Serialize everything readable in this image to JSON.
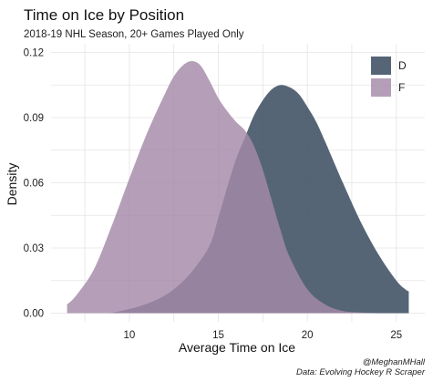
{
  "chart_data": {
    "type": "area",
    "title": "Time on Ice by Position",
    "subtitle": "2018-19 NHL Season, 20+ Games Played Only",
    "xlabel": "Average Time on Ice",
    "ylabel": "Density",
    "xlim": [
      5.6,
      26.6
    ],
    "ylim": [
      -0.004,
      0.124
    ],
    "xticks": [
      10,
      15,
      20,
      25
    ],
    "yticks": [
      0.0,
      0.03,
      0.06,
      0.09,
      0.12
    ],
    "ytick_labels": [
      "0.00",
      "0.03",
      "0.06",
      "0.09",
      "0.12"
    ],
    "grid": true,
    "legend_position": "top-right",
    "series": [
      {
        "name": "D",
        "color": "#3e5062",
        "x": [
          8.9,
          9.5,
          10.5,
          11.5,
          12.5,
          13.5,
          14.5,
          15.0,
          15.5,
          16.0,
          16.5,
          17.0,
          17.5,
          18.0,
          18.5,
          19.0,
          19.5,
          20.0,
          20.5,
          21.0,
          22.0,
          23.0,
          24.0,
          25.0,
          25.5,
          25.7
        ],
        "y": [
          0.0,
          0.001,
          0.003,
          0.006,
          0.011,
          0.019,
          0.031,
          0.044,
          0.058,
          0.071,
          0.081,
          0.091,
          0.098,
          0.103,
          0.105,
          0.104,
          0.101,
          0.095,
          0.088,
          0.079,
          0.06,
          0.042,
          0.027,
          0.015,
          0.011,
          0.01
        ]
      },
      {
        "name": "F",
        "color": "#a58aa8",
        "x": [
          6.5,
          7.0,
          8.0,
          9.0,
          10.0,
          11.0,
          12.0,
          12.5,
          13.0,
          13.5,
          14.0,
          14.5,
          15.0,
          15.5,
          16.0,
          16.5,
          17.0,
          17.5,
          18.0,
          18.5,
          19.0,
          20.0,
          21.0,
          22.0,
          23.0,
          24.0
        ],
        "y": [
          0.004,
          0.008,
          0.02,
          0.04,
          0.062,
          0.083,
          0.101,
          0.109,
          0.114,
          0.116,
          0.114,
          0.107,
          0.099,
          0.093,
          0.088,
          0.084,
          0.077,
          0.066,
          0.052,
          0.038,
          0.026,
          0.011,
          0.004,
          0.001,
          0.0003,
          0.0
        ]
      }
    ]
  },
  "caption": [
    "@MeghanMHall",
    "Data: Evolving Hockey R Scraper"
  ]
}
